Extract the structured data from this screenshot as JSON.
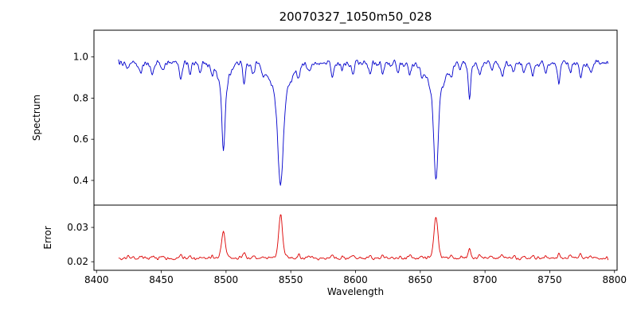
{
  "figure": {
    "title": "20070327_1050m50_028",
    "xlabel": "Wavelength",
    "ylabel_top": "Spectrum",
    "ylabel_bottom": "Error"
  },
  "chart_data": {
    "type": "line",
    "title": "20070327_1050m50_028",
    "xlabel": "Wavelength",
    "legend": "none",
    "grid": false,
    "xlim": [
      8398,
      8802
    ],
    "x_data_range": [
      8417,
      8795
    ],
    "x_step": 0.5,
    "xticks": {
      "values": [
        8400,
        8450,
        8500,
        8550,
        8600,
        8650,
        8700,
        8750,
        8800
      ],
      "labels": [
        "8400",
        "8450",
        "8500",
        "8550",
        "8600",
        "8650",
        "8700",
        "8750",
        "8800"
      ]
    },
    "panels": [
      {
        "name": "spectrum",
        "ylabel": "Spectrum",
        "color": "#0000cc",
        "ylim": [
          0.28,
          1.13
        ],
        "yticks": {
          "values": [
            0.4,
            0.6,
            0.8,
            1.0
          ],
          "labels": [
            "0.4",
            "0.6",
            "0.8",
            "1.0"
          ]
        },
        "continuum": 0.97,
        "noise_sigma": 0.012
      },
      {
        "name": "error",
        "ylabel": "Error",
        "color": "#dd0000",
        "ylim": [
          0.0175,
          0.0365
        ],
        "yticks": {
          "values": [
            0.02,
            0.03
          ],
          "labels": [
            "0.02",
            "0.03"
          ]
        },
        "baseline": 0.021,
        "noise_sigma": 0.00035
      }
    ],
    "absorption_lines": [
      {
        "center": 8498.0,
        "depth": 0.43,
        "core_width": 1.1,
        "wing_width": 4.0,
        "error_peak": 0.0078,
        "min_flux": 0.54,
        "error_max": 0.0288
      },
      {
        "center": 8542.1,
        "depth": 0.61,
        "core_width": 1.9,
        "wing_width": 7.0,
        "error_peak": 0.0135,
        "min_flux": 0.36,
        "error_max": 0.0345
      },
      {
        "center": 8662.1,
        "depth": 0.57,
        "core_width": 1.5,
        "wing_width": 6.0,
        "error_peak": 0.0128,
        "min_flux": 0.4,
        "error_max": 0.0338
      }
    ],
    "minor_lines": [
      [
        8424,
        0.04
      ],
      [
        8434,
        0.05
      ],
      [
        8443,
        0.06
      ],
      [
        8451,
        0.04
      ],
      [
        8465,
        0.08
      ],
      [
        8472,
        0.05
      ],
      [
        8480,
        0.04
      ],
      [
        8489,
        0.05
      ],
      [
        8514,
        0.11
      ],
      [
        8521,
        0.05
      ],
      [
        8529,
        0.04
      ],
      [
        8556,
        0.06
      ],
      [
        8564,
        0.04
      ],
      [
        8582,
        0.07
      ],
      [
        8590,
        0.04
      ],
      [
        8598,
        0.06
      ],
      [
        8611,
        0.05
      ],
      [
        8621,
        0.06
      ],
      [
        8633,
        0.04
      ],
      [
        8642,
        0.06
      ],
      [
        8651,
        0.04
      ],
      [
        8674,
        0.06
      ],
      [
        8681,
        0.04
      ],
      [
        8688,
        0.19
      ],
      [
        8696,
        0.06
      ],
      [
        8705,
        0.04
      ],
      [
        8713,
        0.08
      ],
      [
        8722,
        0.05
      ],
      [
        8730,
        0.05
      ],
      [
        8737,
        0.07
      ],
      [
        8747,
        0.05
      ],
      [
        8757,
        0.09
      ],
      [
        8766,
        0.05
      ],
      [
        8774,
        0.08
      ],
      [
        8782,
        0.05
      ]
    ],
    "seed": 20070327
  }
}
